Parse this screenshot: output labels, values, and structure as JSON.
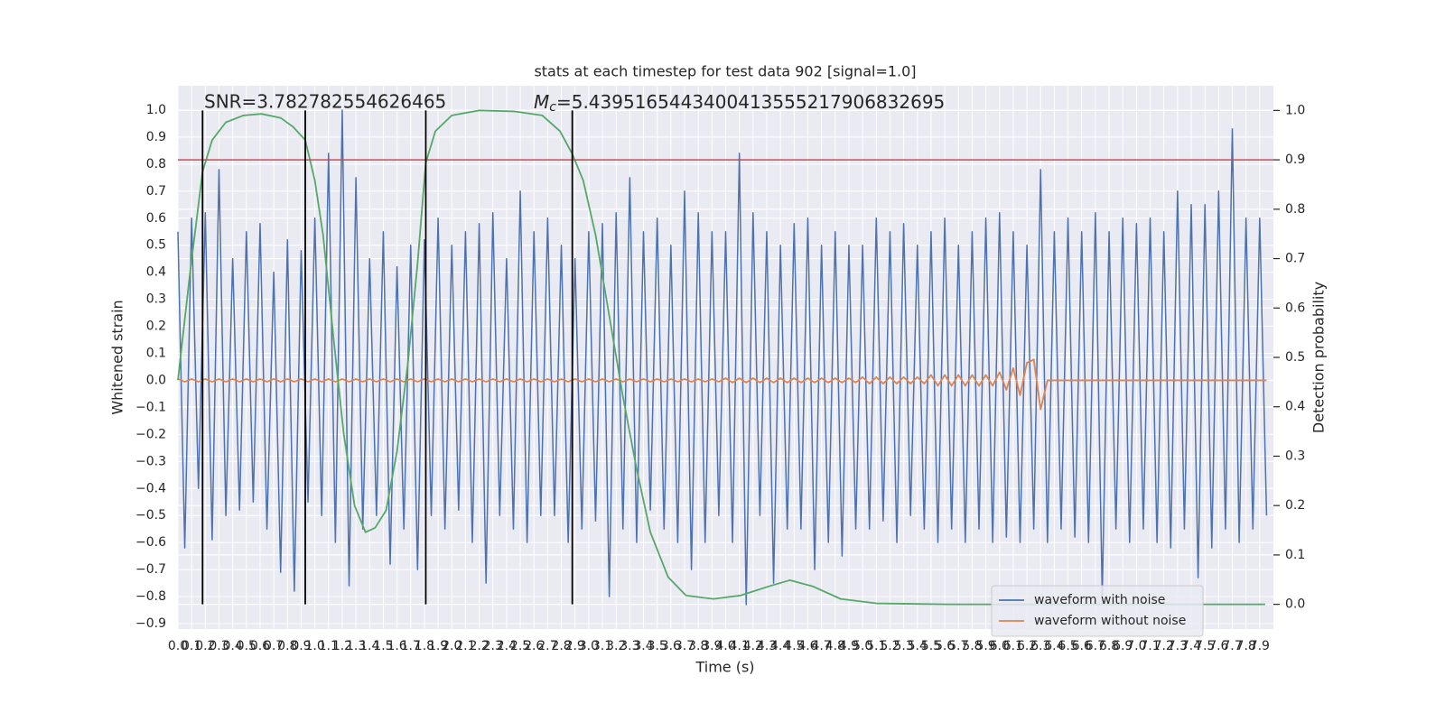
{
  "chart_data": {
    "type": "line",
    "title": "stats at each timestep for test data 902 [signal=1.0]",
    "xlabel": "Time (s)",
    "ylabel": "Whitened strain",
    "y2label": "Detection probability",
    "annotations": [
      {
        "text": "SNR=3.782782554626465"
      },
      {
        "symbol": "M",
        "subscript": "c",
        "text": "=5.4395165443400413555217906832695"
      }
    ],
    "background": "#eaeaf2",
    "grid": true,
    "legend_loc": "lower right",
    "xlim": [
      0,
      8
    ],
    "ylim": [
      -0.92,
      1.09
    ],
    "y2lim": [
      -0.05,
      1.05
    ],
    "xticks": [
      {
        "value": 0,
        "label": "0.0"
      },
      0.1,
      0.2,
      0.3,
      0.4,
      0.5,
      0.6,
      0.7,
      0.8,
      0.9,
      {
        "value": 1,
        "label": "1.0"
      },
      1.1,
      1.2,
      1.3,
      1.4,
      1.5,
      1.6,
      1.7,
      1.8,
      1.9,
      {
        "value": 2,
        "label": "2.0"
      },
      2.1,
      2.2,
      2.3,
      2.4,
      2.5,
      2.6,
      2.7,
      2.8,
      2.9,
      {
        "value": 3,
        "label": "3.0"
      },
      3.1,
      3.2,
      3.3,
      3.4,
      3.5,
      3.6,
      3.7,
      3.8,
      3.9,
      {
        "value": 4,
        "label": "4.0"
      },
      4.1,
      4.2,
      4.3,
      4.4,
      4.5,
      4.6,
      4.7,
      4.8,
      4.9,
      {
        "value": 5,
        "label": "5.0"
      },
      5.1,
      5.2,
      5.3,
      5.4,
      5.5,
      5.6,
      5.7,
      5.8,
      5.9,
      {
        "value": 6,
        "label": "6.0"
      },
      6.1,
      6.2,
      6.3,
      6.4,
      6.5,
      6.6,
      6.7,
      6.8,
      6.9,
      {
        "value": 7,
        "label": "7.0"
      },
      7.1,
      7.2,
      7.3,
      7.4,
      7.5,
      7.6,
      7.7,
      7.8,
      7.9
    ],
    "yticks": [
      {
        "value": -0.9,
        "label": "−0.9"
      },
      {
        "value": -0.8,
        "label": "−0.8"
      },
      {
        "value": -0.7,
        "label": "−0.7"
      },
      {
        "value": -0.6,
        "label": "−0.6"
      },
      {
        "value": -0.5,
        "label": "−0.5"
      },
      {
        "value": -0.4,
        "label": "−0.4"
      },
      {
        "value": -0.3,
        "label": "−0.3"
      },
      {
        "value": -0.2,
        "label": "−0.2"
      },
      {
        "value": -0.1,
        "label": "−0.1"
      },
      {
        "value": 0,
        "label": "0.0"
      },
      0.1,
      0.2,
      0.3,
      0.4,
      0.5,
      0.6,
      0.7,
      0.8,
      0.9,
      {
        "value": 1,
        "label": "1.0"
      }
    ],
    "y2ticks": [
      {
        "value": 0,
        "label": "0.0"
      },
      0.1,
      0.2,
      0.3,
      0.4,
      0.5,
      0.6,
      0.7,
      0.8,
      0.9,
      {
        "value": 1,
        "label": "1.0"
      }
    ],
    "hline": {
      "y": 0.9,
      "axis": "y2",
      "color": "#c44e52"
    },
    "vlines": {
      "x": [
        0.18,
        0.93,
        1.81,
        2.88
      ],
      "ymin": 0,
      "ymax": 1,
      "axis": "y2",
      "color": "#000000"
    },
    "x": [
      0,
      0.05,
      0.1,
      0.15,
      0.2,
      0.25,
      0.3,
      0.35,
      0.4,
      0.45,
      0.5,
      0.55,
      0.6,
      0.65,
      0.7,
      0.75,
      0.8,
      0.85,
      0.9,
      0.95,
      1,
      1.05,
      1.1,
      1.15,
      1.2,
      1.25,
      1.3,
      1.35,
      1.4,
      1.45,
      1.5,
      1.55,
      1.6,
      1.65,
      1.7,
      1.75,
      1.8,
      1.85,
      1.9,
      1.95,
      2,
      2.05,
      2.1,
      2.15,
      2.2,
      2.25,
      2.3,
      2.35,
      2.4,
      2.45,
      2.5,
      2.55,
      2.6,
      2.65,
      2.7,
      2.75,
      2.8,
      2.85,
      2.9,
      2.95,
      3,
      3.05,
      3.1,
      3.15,
      3.2,
      3.25,
      3.3,
      3.35,
      3.4,
      3.45,
      3.5,
      3.55,
      3.6,
      3.65,
      3.7,
      3.75,
      3.8,
      3.85,
      3.9,
      3.95,
      4,
      4.05,
      4.1,
      4.15,
      4.2,
      4.25,
      4.3,
      4.35,
      4.4,
      4.45,
      4.5,
      4.55,
      4.6,
      4.65,
      4.7,
      4.75,
      4.8,
      4.85,
      4.9,
      4.95,
      5,
      5.05,
      5.1,
      5.15,
      5.2,
      5.25,
      5.3,
      5.35,
      5.4,
      5.45,
      5.5,
      5.55,
      5.6,
      5.65,
      5.7,
      5.75,
      5.8,
      5.85,
      5.9,
      5.95,
      6,
      6.05,
      6.1,
      6.15,
      6.2,
      6.25,
      6.3,
      6.35,
      6.4,
      6.45,
      6.5,
      6.55,
      6.6,
      6.65,
      6.7,
      6.75,
      6.8,
      6.85,
      6.9,
      6.95,
      7,
      7.05,
      7.1,
      7.15,
      7.2,
      7.25,
      7.3,
      7.35,
      7.4,
      7.45,
      7.5,
      7.55,
      7.6,
      7.65,
      7.7,
      7.75,
      7.8,
      7.85,
      7.9,
      7.95
    ],
    "series": [
      {
        "name": "waveform with noise",
        "color": "#4c72b0",
        "values": [
          0.55,
          -0.62,
          0.6,
          -0.4,
          0.62,
          -0.59,
          0.78,
          -0.5,
          0.45,
          -0.48,
          0.55,
          -0.45,
          0.58,
          -0.55,
          0.4,
          -0.71,
          0.52,
          -0.78,
          0.48,
          -0.45,
          0.6,
          -0.5,
          0.84,
          -0.6,
          1.0,
          -0.76,
          0.75,
          -0.55,
          0.45,
          -0.5,
          0.55,
          -0.68,
          0.42,
          -0.55,
          0.5,
          -0.7,
          0.52,
          -0.5,
          0.6,
          -0.55,
          0.5,
          -0.48,
          0.55,
          -0.6,
          0.58,
          -0.75,
          0.62,
          -0.5,
          0.45,
          -0.55,
          0.7,
          -0.6,
          0.55,
          -0.5,
          0.6,
          -0.5,
          0.5,
          -0.6,
          0.45,
          -0.55,
          0.55,
          -0.52,
          0.58,
          -0.8,
          0.62,
          -0.55,
          0.75,
          -0.6,
          0.55,
          -0.48,
          0.6,
          -0.55,
          0.5,
          -0.6,
          0.7,
          -0.7,
          0.62,
          -0.6,
          0.55,
          -0.5,
          0.55,
          -0.6,
          0.84,
          -0.83,
          0.62,
          -0.5,
          0.55,
          -0.75,
          0.5,
          -0.55,
          0.58,
          -0.55,
          0.6,
          -0.7,
          0.5,
          -0.6,
          0.55,
          -0.65,
          0.5,
          -0.55,
          0.5,
          -0.55,
          0.6,
          -0.52,
          0.55,
          -0.6,
          0.58,
          -0.5,
          0.5,
          -0.55,
          0.55,
          -0.6,
          0.6,
          -0.55,
          0.5,
          -0.6,
          0.55,
          -0.55,
          0.6,
          -0.6,
          0.62,
          -0.58,
          0.55,
          -0.6,
          0.5,
          -0.55,
          0.78,
          -0.6,
          0.55,
          -0.55,
          0.6,
          -0.58,
          0.55,
          -0.6,
          0.62,
          -0.8,
          0.55,
          -0.55,
          0.6,
          -0.6,
          0.58,
          -0.55,
          0.6,
          -0.6,
          0.55,
          -0.62,
          0.7,
          -0.55,
          0.65,
          -0.73,
          0.65,
          -0.62,
          0.7,
          -0.55,
          0.93,
          -0.6,
          0.6,
          -0.55,
          0.6,
          -0.5
        ]
      },
      {
        "name": "waveform without noise",
        "color": "#dd8452",
        "values": [
          0.005,
          -0.005,
          0.005,
          -0.005,
          0.005,
          -0.005,
          0.005,
          -0.005,
          0.005,
          -0.005,
          0.005,
          -0.005,
          0.005,
          -0.005,
          0.005,
          -0.005,
          0.005,
          -0.005,
          0.005,
          -0.005,
          0.005,
          -0.005,
          0.005,
          -0.005,
          0.005,
          -0.005,
          0.005,
          -0.005,
          0.005,
          -0.005,
          0.005,
          -0.005,
          0.005,
          -0.005,
          0.005,
          -0.005,
          0.005,
          -0.005,
          0.005,
          -0.005,
          0.005,
          -0.005,
          0.005,
          -0.005,
          0.005,
          -0.005,
          0.005,
          -0.005,
          0.005,
          -0.005,
          0.005,
          -0.005,
          0.005,
          -0.005,
          0.005,
          -0.005,
          0.005,
          -0.005,
          0.005,
          -0.005,
          0.005,
          -0.005,
          0.005,
          -0.005,
          0.005,
          -0.005,
          0.005,
          -0.005,
          0.005,
          -0.005,
          0.005,
          -0.005,
          0.005,
          -0.005,
          0.005,
          -0.005,
          0.005,
          -0.005,
          0.005,
          -0.005,
          0.008,
          -0.008,
          0.008,
          -0.008,
          0.008,
          -0.008,
          0.008,
          -0.008,
          0.008,
          -0.008,
          0.008,
          -0.008,
          0.008,
          -0.008,
          0.008,
          -0.008,
          0.008,
          -0.008,
          0.008,
          -0.008,
          0.012,
          -0.012,
          0.012,
          -0.012,
          0.012,
          -0.012,
          0.012,
          -0.012,
          0.012,
          -0.012,
          0.02,
          -0.02,
          0.02,
          -0.02,
          0.02,
          -0.02,
          0.02,
          -0.02,
          0.02,
          -0.02,
          0.03,
          -0.035,
          0.045,
          -0.055,
          0.065,
          0.077,
          -0.107,
          0,
          0,
          0,
          0,
          0,
          0,
          0,
          0,
          0,
          0,
          0,
          0,
          0,
          0,
          0,
          0,
          0,
          0,
          0,
          0,
          0,
          0,
          0,
          0,
          0,
          0,
          0,
          0,
          0,
          0,
          0,
          0,
          0
        ]
      },
      {
        "color": "#55a868",
        "axis": "y2",
        "x": [
          0,
          0.09,
          0.18,
          0.25,
          0.35,
          0.48,
          0.61,
          0.75,
          0.84,
          0.93,
          1.0,
          1.06,
          1.14,
          1.21,
          1.29,
          1.37,
          1.44,
          1.52,
          1.6,
          1.68,
          1.75,
          1.81,
          1.88,
          2.0,
          2.2,
          2.46,
          2.66,
          2.79,
          2.88,
          2.96,
          3.05,
          3.15,
          3.25,
          3.35,
          3.45,
          3.58,
          3.71,
          3.91,
          4.11,
          4.31,
          4.47,
          4.64,
          4.84,
          5.1,
          5.63,
          7.94
        ],
        "values": [
          0.454,
          0.675,
          0.876,
          0.94,
          0.976,
          0.99,
          0.993,
          0.985,
          0.967,
          0.94,
          0.858,
          0.748,
          0.53,
          0.347,
          0.2,
          0.146,
          0.155,
          0.19,
          0.31,
          0.49,
          0.69,
          0.894,
          0.958,
          0.99,
          1.0,
          0.998,
          0.99,
          0.958,
          0.912,
          0.858,
          0.748,
          0.584,
          0.42,
          0.274,
          0.146,
          0.055,
          0.018,
          0.011,
          0.018,
          0.036,
          0.049,
          0.036,
          0.011,
          0.002,
          0.0,
          0.0
        ]
      }
    ]
  }
}
